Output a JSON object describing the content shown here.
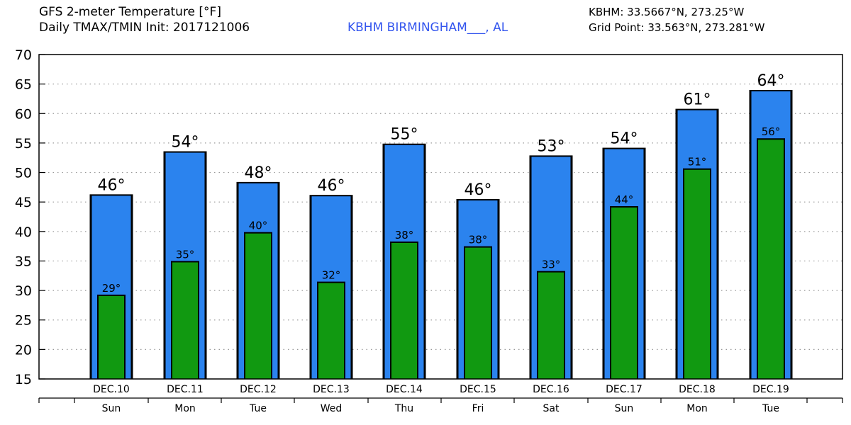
{
  "header": {
    "title_line1": "GFS 2-meter Temperature [°F]",
    "title_line2": "Daily TMAX/TMIN Init: 2017121006",
    "station": "KBHM BIRMINGHAM___, AL",
    "station_coords": "KBHM: 33.5667°N, 273.25°W",
    "grid_point": "Grid Point: 33.563°N, 273.281°W"
  },
  "chart_data": {
    "type": "bar",
    "title": "GFS 2-meter Temperature [°F]",
    "subtitle": "Daily TMAX/TMIN Init: 2017121006",
    "categories": [
      "DEC.10",
      "DEC.11",
      "DEC.12",
      "DEC.13",
      "DEC.14",
      "DEC.15",
      "DEC.16",
      "DEC.17",
      "DEC.18",
      "DEC.19"
    ],
    "days": [
      "Sun",
      "Mon",
      "Tue",
      "Wed",
      "Thu",
      "Fri",
      "Sat",
      "Sun",
      "Mon",
      "Tue"
    ],
    "series": [
      {
        "color": "#2b83ee",
        "values": [
          46.3,
          53.6,
          48.4,
          46.2,
          54.9,
          45.5,
          52.9,
          54.2,
          60.8,
          64.0
        ],
        "labels": [
          "46°",
          "54°",
          "48°",
          "46°",
          "55°",
          "46°",
          "53°",
          "54°",
          "61°",
          "64°"
        ]
      },
      {
        "color": "#119911",
        "values": [
          29.3,
          35.0,
          39.9,
          31.5,
          38.3,
          37.5,
          33.3,
          44.3,
          50.7,
          55.8
        ],
        "labels": [
          "29°",
          "35°",
          "40°",
          "32°",
          "38°",
          "38°",
          "33°",
          "44°",
          "51°",
          "56°"
        ]
      }
    ],
    "yticks": [
      15,
      20,
      25,
      30,
      35,
      40,
      45,
      50,
      55,
      60,
      65,
      70
    ],
    "ylim": [
      15,
      70
    ],
    "grid": true,
    "xlabel": "",
    "ylabel": ""
  }
}
